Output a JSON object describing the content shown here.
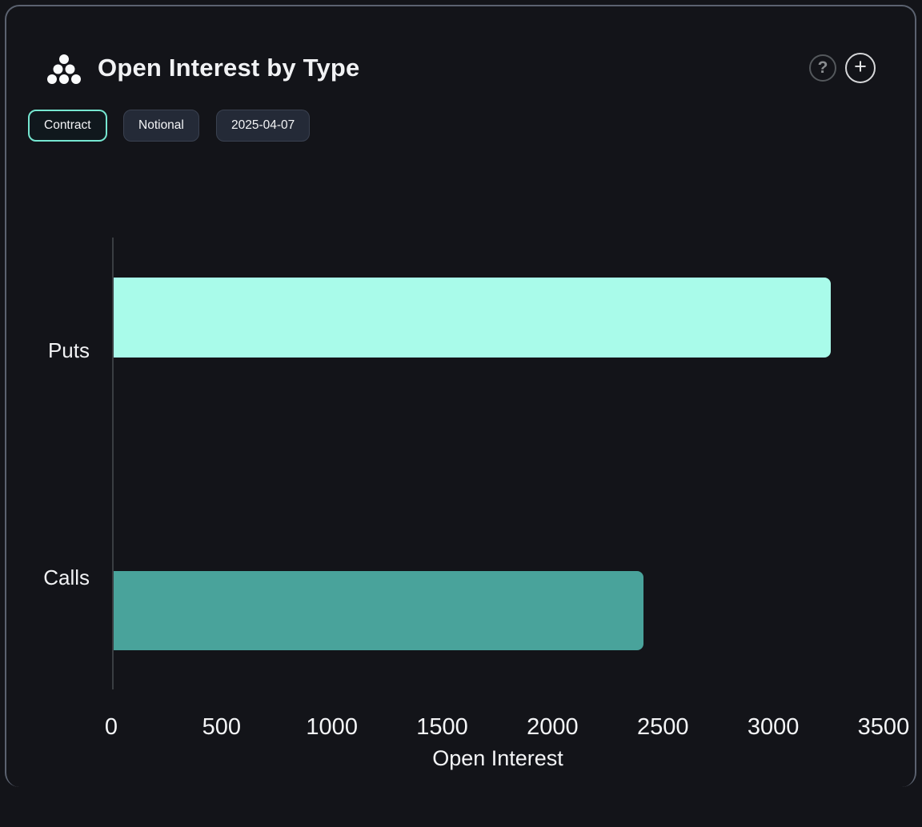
{
  "header": {
    "title": "Open Interest by Type",
    "icon": "dots-pyramid",
    "actions": {
      "help": "?",
      "add": "+"
    }
  },
  "toolbar": {
    "buttons": [
      {
        "label": "Contract",
        "active": true
      },
      {
        "label": "Notional",
        "active": false
      },
      {
        "label": "2025-04-07",
        "active": false
      }
    ]
  },
  "chart_data": {
    "type": "bar",
    "orientation": "horizontal",
    "title": "Open Interest by Type",
    "categories": [
      "Puts",
      "Calls"
    ],
    "values": [
      3250,
      2400
    ],
    "bar_colors": [
      "#a9fbea",
      "#49a39b"
    ],
    "xlabel": "Open Interest",
    "ylabel": "",
    "x_ticks": [
      0,
      500,
      1000,
      1500,
      2000,
      2500,
      3000,
      3500
    ],
    "xlim": [
      0,
      3560
    ],
    "grid": false,
    "legend": false
  },
  "colors": {
    "background": "#131419",
    "card_border": "#5b6270",
    "accent": "#76e7d1",
    "axis_line": "#3a3e42",
    "puts_bar": "#a9fbea",
    "calls_bar": "#49a39b"
  }
}
